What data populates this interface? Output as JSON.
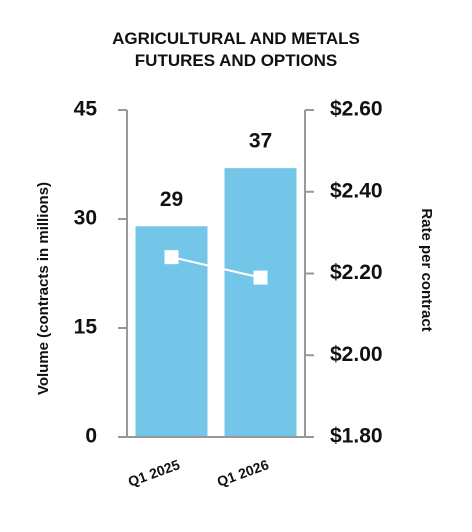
{
  "chart_data": {
    "type": "bar",
    "title": "AGRICULTURAL AND METALS FUTURES AND OPTIONS",
    "categories": [
      "Q1 2025",
      "Q1 2026"
    ],
    "series": [
      {
        "type": "bar",
        "color": "#74c6e9",
        "values": [
          29,
          37
        ]
      },
      {
        "type": "line",
        "axis": "y2",
        "color": "#ffffff",
        "values": [
          2.24,
          2.19
        ]
      }
    ],
    "ylabel": "Volume (contracts in millions)",
    "y2label": "Rate per contract",
    "ylim": [
      0,
      45
    ],
    "yticks": [
      0,
      15,
      30,
      45
    ],
    "y2lim": [
      1.8,
      2.6
    ],
    "y2ticks": [
      {
        "value": 1.8,
        "label": "$1.80"
      },
      {
        "value": 2.0,
        "label": "$2.00"
      },
      {
        "value": 2.2,
        "label": "$2.20"
      },
      {
        "value": 2.4,
        "label": "$2.40"
      },
      {
        "value": 2.6,
        "label": "$2.60"
      }
    ],
    "axis_color": "#999999"
  }
}
